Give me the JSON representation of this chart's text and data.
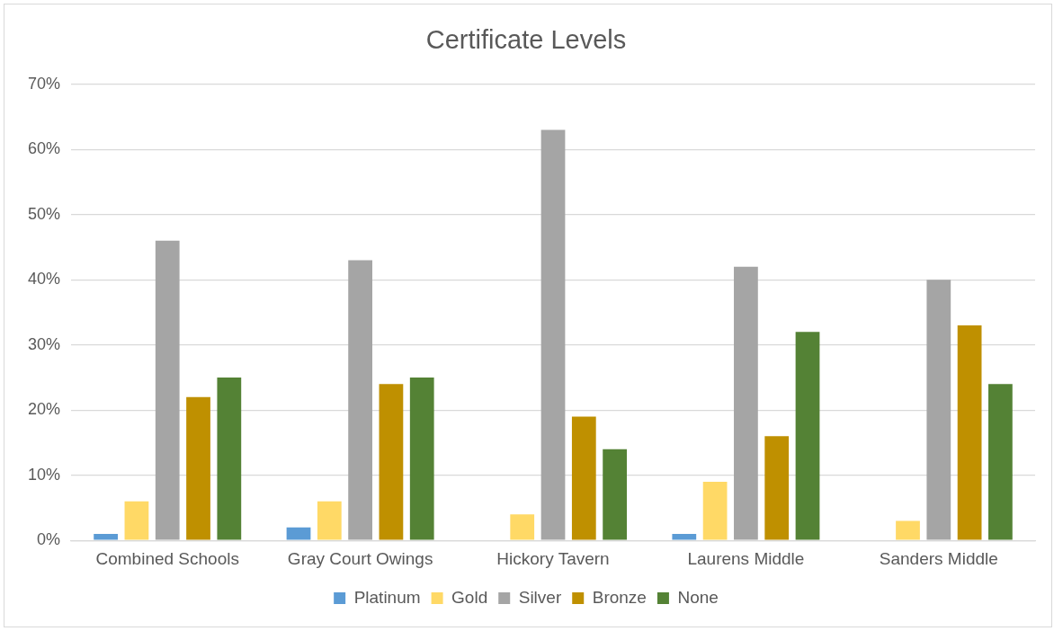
{
  "chart_data": {
    "type": "bar",
    "title": "Certificate Levels",
    "categories": [
      "Combined Schools",
      "Gray Court Owings",
      "Hickory Tavern",
      "Laurens Middle",
      "Sanders Middle"
    ],
    "series": [
      {
        "name": "Platinum",
        "color": "#5b9bd5",
        "values": [
          1,
          2,
          0,
          1,
          0
        ]
      },
      {
        "name": "Gold",
        "color": "#ffd966",
        "values": [
          6,
          6,
          4,
          9,
          3
        ]
      },
      {
        "name": "Silver",
        "color": "#a5a5a5",
        "values": [
          46,
          43,
          63,
          42,
          40
        ]
      },
      {
        "name": "Bronze",
        "color": "#bf9000",
        "values": [
          22,
          24,
          19,
          16,
          33
        ]
      },
      {
        "name": "None",
        "color": "#548235",
        "values": [
          25,
          25,
          14,
          32,
          24
        ]
      }
    ],
    "ylim": [
      0,
      70
    ],
    "yticks": [
      {
        "value": 0,
        "label": "0%"
      },
      {
        "value": 10,
        "label": "10%"
      },
      {
        "value": 20,
        "label": "20%"
      },
      {
        "value": 30,
        "label": "30%"
      },
      {
        "value": 40,
        "label": "40%"
      },
      {
        "value": 50,
        "label": "50%"
      },
      {
        "value": 60,
        "label": "60%"
      },
      {
        "value": 70,
        "label": "70%"
      }
    ],
    "grid": "y",
    "legend": "bottom"
  }
}
